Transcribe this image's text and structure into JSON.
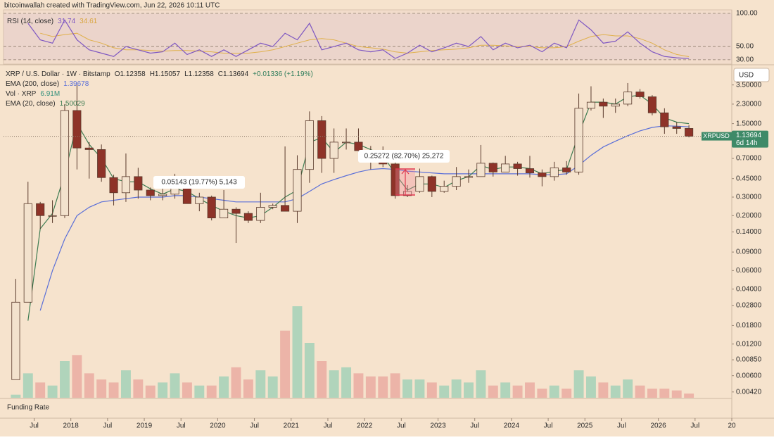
{
  "chart_data": {
    "type": "candlestick",
    "title": "bitcoinwallah created with TradingView.com, Jun 22, 2026 10:11 UTC",
    "symbol_label": "XRP / U.S. Dollar · 1W · Bitstamp",
    "ohlc_labels": [
      "O1.12358",
      "H1.15057",
      "L1.12358",
      "C1.13694"
    ],
    "change_label": "+0.01336 (+1.19%)",
    "currency": "USD",
    "funding_label": "Funding Rate",
    "price_tag": {
      "symbol": "XRPUSD",
      "countdown": "6d 14h"
    },
    "annotations": [
      {
        "text": "0.05143 (19.77%) 5,143"
      },
      {
        "text": "0.25272 (82.70%) 25,272"
      }
    ],
    "x": [
      "2017-03",
      "2017-05",
      "2017-07",
      "2017-09",
      "2017-11",
      "2018-01",
      "2018-03",
      "2018-05",
      "2018-07",
      "2018-09",
      "2018-11",
      "2019-01",
      "2019-03",
      "2019-05",
      "2019-07",
      "2019-09",
      "2019-11",
      "2020-01",
      "2020-03",
      "2020-05",
      "2020-07",
      "2020-09",
      "2020-11",
      "2021-01",
      "2021-03",
      "2021-05",
      "2021-07",
      "2021-09",
      "2021-11",
      "2022-01",
      "2022-03",
      "2022-05",
      "2022-07",
      "2022-09",
      "2022-11",
      "2023-01",
      "2023-03",
      "2023-05",
      "2023-07",
      "2023-09",
      "2023-11",
      "2024-01",
      "2024-03",
      "2024-05",
      "2024-07",
      "2024-09",
      "2024-11",
      "2025-01",
      "2025-03",
      "2025-05",
      "2025-07",
      "2025-09",
      "2025-11",
      "2026-01",
      "2026-03",
      "2026-05"
    ],
    "open": [
      0.0055,
      0.03,
      0.26,
      0.2,
      0.2,
      2.0,
      0.88,
      0.85,
      0.46,
      0.33,
      0.47,
      0.35,
      0.31,
      0.32,
      0.4,
      0.26,
      0.3,
      0.19,
      0.23,
      0.21,
      0.18,
      0.24,
      0.25,
      0.22,
      0.55,
      1.6,
      0.7,
      1.0,
      1.0,
      0.83,
      0.78,
      0.62,
      0.31,
      0.34,
      0.47,
      0.34,
      0.38,
      0.47,
      0.47,
      0.63,
      0.52,
      0.62,
      0.56,
      0.51,
      0.47,
      0.57,
      0.52,
      2.1,
      2.4,
      2.2,
      2.3,
      3.0,
      2.7,
      1.9,
      1.4,
      1.35
    ],
    "high": [
      0.05,
      0.42,
      0.27,
      0.28,
      2.3,
      3.5,
      1.0,
      0.95,
      0.49,
      0.78,
      0.57,
      0.37,
      0.36,
      0.5,
      0.41,
      0.33,
      0.31,
      0.35,
      0.24,
      0.22,
      0.33,
      0.26,
      0.91,
      0.75,
      1.96,
      1.77,
      1.35,
      1.35,
      1.35,
      0.92,
      0.91,
      0.72,
      0.39,
      0.56,
      0.48,
      0.43,
      0.58,
      0.55,
      0.94,
      0.64,
      0.74,
      0.65,
      0.74,
      0.55,
      0.65,
      0.66,
      2.9,
      3.4,
      2.6,
      2.6,
      3.65,
      3.2,
      2.8,
      2.1,
      1.55,
      1.45
    ],
    "low": [
      0.0055,
      0.03,
      0.15,
      0.17,
      0.19,
      0.55,
      0.45,
      0.42,
      0.25,
      0.27,
      0.29,
      0.28,
      0.28,
      0.29,
      0.26,
      0.22,
      0.18,
      0.19,
      0.11,
      0.17,
      0.17,
      0.23,
      0.23,
      0.17,
      0.41,
      0.51,
      0.51,
      0.85,
      0.8,
      0.55,
      0.58,
      0.29,
      0.3,
      0.33,
      0.3,
      0.33,
      0.35,
      0.41,
      0.47,
      0.47,
      0.52,
      0.48,
      0.46,
      0.38,
      0.43,
      0.49,
      0.49,
      2.0,
      1.7,
      1.9,
      2.2,
      2.6,
      1.8,
      1.2,
      1.2,
      1.11
    ],
    "close": [
      0.03,
      0.26,
      0.2,
      0.2,
      2.0,
      0.88,
      0.85,
      0.46,
      0.33,
      0.47,
      0.35,
      0.31,
      0.32,
      0.4,
      0.26,
      0.3,
      0.19,
      0.23,
      0.21,
      0.18,
      0.24,
      0.25,
      0.22,
      0.55,
      1.6,
      0.7,
      1.0,
      1.0,
      0.83,
      0.78,
      0.62,
      0.31,
      0.34,
      0.47,
      0.34,
      0.38,
      0.47,
      0.47,
      0.63,
      0.52,
      0.62,
      0.56,
      0.51,
      0.47,
      0.57,
      0.52,
      2.1,
      2.4,
      2.2,
      2.3,
      3.0,
      2.7,
      1.9,
      1.4,
      1.35,
      1.13694
    ],
    "up_color": "#f3e2cd",
    "down_color": "#8e3328",
    "wick_color": "#5a3a2c",
    "log_scale": true,
    "grid": false,
    "xlim": [
      "2017-02",
      "2027-01"
    ],
    "xticks": [
      {
        "value": "2017-07",
        "label": "Jul"
      },
      {
        "value": "2018-01",
        "label": "2018"
      },
      {
        "value": "2018-07",
        "label": "Jul"
      },
      {
        "value": "2019-01",
        "label": "2019"
      },
      {
        "value": "2019-07",
        "label": "Jul"
      },
      {
        "value": "2020-01",
        "label": "2020"
      },
      {
        "value": "2020-07",
        "label": "Jul"
      },
      {
        "value": "2021-01",
        "label": "2021"
      },
      {
        "value": "2021-07",
        "label": "Jul"
      },
      {
        "value": "2022-01",
        "label": "2022"
      },
      {
        "value": "2022-07",
        "label": "Jul"
      },
      {
        "value": "2023-01",
        "label": "2023"
      },
      {
        "value": "2023-07",
        "label": "Jul"
      },
      {
        "value": "2024-01",
        "label": "2024"
      },
      {
        "value": "2024-07",
        "label": "Jul"
      },
      {
        "value": "2025-01",
        "label": "2025"
      },
      {
        "value": "2025-07",
        "label": "Jul"
      },
      {
        "value": "2026-01",
        "label": "2026"
      },
      {
        "value": "2026-07",
        "label": "Jul"
      },
      {
        "value": "2027-01",
        "label": "20"
      }
    ],
    "ylim": [
      0.0037,
      5.2
    ],
    "yticks": [
      {
        "value": 3.5,
        "label": "3.50000"
      },
      {
        "value": 2.3,
        "label": "2.30000"
      },
      {
        "value": 1.5,
        "label": "1.50000"
      },
      {
        "value": 0.7,
        "label": "0.70000"
      },
      {
        "value": 0.45,
        "label": "0.45000"
      },
      {
        "value": 0.3,
        "label": "0.30000"
      },
      {
        "value": 0.2,
        "label": "0.20000"
      },
      {
        "value": 0.14,
        "label": "0.14000"
      },
      {
        "value": 0.09,
        "label": "0.09000"
      },
      {
        "value": 0.06,
        "label": "0.06000"
      },
      {
        "value": 0.04,
        "label": "0.04000"
      },
      {
        "value": 0.028,
        "label": "0.02800"
      },
      {
        "value": 0.018,
        "label": "0.01800"
      },
      {
        "value": 0.012,
        "label": "0.01200"
      },
      {
        "value": 0.0085,
        "label": "0.00850"
      },
      {
        "value": 0.006,
        "label": "0.00600"
      },
      {
        "value": 0.0042,
        "label": "0.00420"
      }
    ],
    "ema": [
      {
        "name": "EMA (200, close)",
        "color": "#5a6fd8",
        "values": [
          null,
          null,
          0.025,
          0.06,
          0.12,
          0.2,
          0.24,
          0.27,
          0.28,
          0.29,
          0.3,
          0.3,
          0.3,
          0.31,
          0.31,
          0.3,
          0.29,
          0.28,
          0.27,
          0.27,
          0.27,
          0.27,
          0.27,
          0.29,
          0.34,
          0.4,
          0.44,
          0.48,
          0.52,
          0.55,
          0.56,
          0.55,
          0.53,
          0.52,
          0.51,
          0.5,
          0.5,
          0.5,
          0.5,
          0.5,
          0.5,
          0.5,
          0.5,
          0.49,
          0.49,
          0.5,
          0.6,
          0.75,
          0.9,
          1.02,
          1.15,
          1.28,
          1.38,
          1.43,
          1.42,
          1.39678
        ]
      },
      {
        "name": "EMA (20, close)",
        "color": "#3e7c52",
        "values": [
          null,
          0.02,
          0.15,
          0.21,
          0.5,
          1.5,
          0.95,
          0.7,
          0.45,
          0.42,
          0.42,
          0.36,
          0.32,
          0.36,
          0.34,
          0.29,
          0.25,
          0.22,
          0.2,
          0.19,
          0.2,
          0.24,
          0.3,
          0.35,
          1.0,
          1.1,
          0.8,
          1.0,
          0.95,
          0.85,
          0.75,
          0.5,
          0.35,
          0.4,
          0.4,
          0.37,
          0.43,
          0.47,
          0.6,
          0.55,
          0.58,
          0.58,
          0.56,
          0.5,
          0.53,
          0.55,
          1.2,
          2.4,
          2.4,
          2.3,
          2.7,
          2.8,
          2.3,
          1.7,
          1.55,
          1.50029
        ]
      }
    ],
    "volume": {
      "name": "Vol · XRP",
      "last_label": "6.91M",
      "color": "#2f8f7a",
      "up_color": "#9fcfb6",
      "down_color": "#eaa79f",
      "values": [
        5000000,
        40000000,
        25000000,
        20000000,
        60000000,
        70000000,
        40000000,
        30000000,
        25000000,
        45000000,
        30000000,
        20000000,
        25000000,
        40000000,
        25000000,
        20000000,
        20000000,
        35000000,
        50000000,
        30000000,
        45000000,
        35000000,
        110000000,
        150000000,
        90000000,
        60000000,
        45000000,
        50000000,
        40000000,
        35000000,
        35000000,
        40000000,
        30000000,
        30000000,
        25000000,
        20000000,
        30000000,
        25000000,
        45000000,
        20000000,
        25000000,
        20000000,
        25000000,
        15000000,
        20000000,
        15000000,
        45000000,
        35000000,
        25000000,
        20000000,
        30000000,
        20000000,
        15000000,
        15000000,
        12000000,
        6910000
      ]
    },
    "rsi": {
      "name": "RSI (14, close)",
      "color": "#7e57c2",
      "ma_color": "#e0b04a",
      "values": [
        null,
        85,
        60,
        55,
        90,
        60,
        45,
        40,
        35,
        50,
        45,
        40,
        42,
        55,
        38,
        45,
        35,
        45,
        35,
        45,
        55,
        50,
        70,
        60,
        85,
        45,
        50,
        55,
        45,
        42,
        45,
        32,
        40,
        52,
        42,
        48,
        55,
        50,
        65,
        45,
        55,
        48,
        52,
        42,
        55,
        48,
        90,
        75,
        55,
        58,
        72,
        55,
        42,
        35,
        33,
        31.74
      ],
      "ma_values": [
        null,
        null,
        70,
        65,
        68,
        70,
        60,
        55,
        48,
        45,
        45,
        44,
        43,
        44,
        44,
        43,
        42,
        40,
        40,
        40,
        42,
        45,
        50,
        55,
        60,
        62,
        60,
        55,
        50,
        48,
        46,
        42,
        40,
        42,
        44,
        45,
        46,
        48,
        52,
        52,
        51,
        50,
        50,
        48,
        48,
        50,
        58,
        65,
        68,
        66,
        66,
        62,
        55,
        45,
        38,
        34.61
      ],
      "ylim": [
        23.5,
        105.3
      ],
      "yticks": [
        {
          "value": 30,
          "label": "30.00"
        },
        {
          "value": 50,
          "label": "50.00"
        },
        {
          "value": 100,
          "label": "100.00"
        }
      ]
    }
  }
}
